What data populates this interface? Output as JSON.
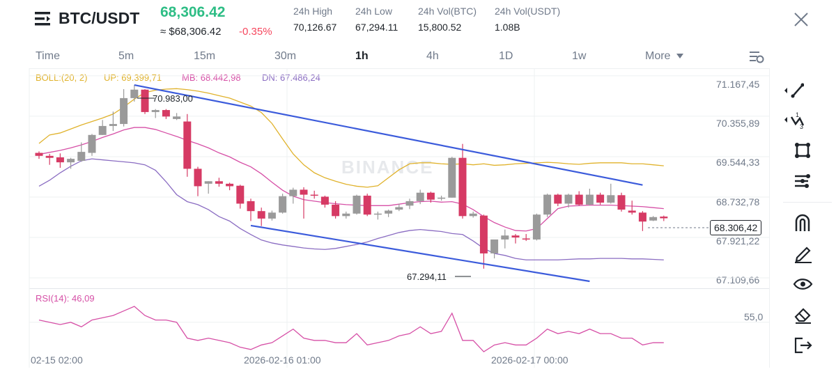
{
  "header": {
    "pair": "BTC/USDT",
    "last_price": "68,306.42",
    "fiat_price": "≈ $68,306.42",
    "change": "-0.35%",
    "stats": [
      {
        "label": "24h High",
        "value": "70,126.67"
      },
      {
        "label": "24h Low",
        "value": "67,294.11"
      },
      {
        "label": "24h Vol(BTC)",
        "value": "15,800.52"
      },
      {
        "label": "24h Vol(USDT)",
        "value": "1.08B"
      }
    ]
  },
  "tabs": [
    {
      "label": "Time",
      "active": false
    },
    {
      "label": "5m",
      "active": false
    },
    {
      "label": "15m",
      "active": false
    },
    {
      "label": "30m",
      "active": false
    },
    {
      "label": "1h",
      "active": true
    },
    {
      "label": "4h",
      "active": false
    },
    {
      "label": "1D",
      "active": false
    },
    {
      "label": "1w",
      "active": false
    },
    {
      "label": "More",
      "active": false
    }
  ],
  "indicators": {
    "boll_label": "BOLL:(20, 2)",
    "up_label": "UP: 69.399,71",
    "mb_label": "MB: 68.442,98",
    "dn_label": "DN: 67.486,24",
    "rsi_label": "RSI(14): 46,09"
  },
  "price_axis": [
    "71.167,45",
    "70.355,89",
    "69.544,33",
    "68.732,78",
    "67.921,22",
    "67.109,66"
  ],
  "rsi_axis": "55,0",
  "time_axis": [
    "02-15 02:00",
    "2026-02-16 01:00",
    "2026-02-17 00:00"
  ],
  "current_price_tag": "68.306,42",
  "annotations": {
    "high": "70.983,00",
    "low": "67.294,11"
  },
  "watermark": "BINANCE",
  "colors": {
    "up": "#2ebd85",
    "down": "#f6465d",
    "bull_candle": "#9a9a9a",
    "bear_candle": "#d63a64",
    "upper_band": "#e0b22b",
    "middle_band": "#d64fa6",
    "lower_band": "#8a6cc2",
    "channel": "#3b5bdb",
    "rsi": "#d64fa6"
  },
  "toolbar_icons": [
    "trend-line-icon",
    "fib-icon",
    "shape-icon",
    "indicator-settings-icon",
    "magnet-icon",
    "pencil-icon",
    "eye-icon",
    "eraser-icon",
    "exit-icon"
  ],
  "chart_data": {
    "type": "candlestick",
    "candles": [
      {
        "o": 69620,
        "h": 69650,
        "l": 69500,
        "c": 69560
      },
      {
        "o": 69560,
        "h": 69600,
        "l": 69380,
        "c": 69520
      },
      {
        "o": 69530,
        "h": 69610,
        "l": 69320,
        "c": 69430
      },
      {
        "o": 69430,
        "h": 69520,
        "l": 69300,
        "c": 69500
      },
      {
        "o": 69460,
        "h": 69830,
        "l": 69440,
        "c": 69640
      },
      {
        "o": 69620,
        "h": 70000,
        "l": 69560,
        "c": 69980
      },
      {
        "o": 69980,
        "h": 70280,
        "l": 69980,
        "c": 70160
      },
      {
        "o": 70160,
        "h": 70450,
        "l": 70060,
        "c": 70200
      },
      {
        "o": 70200,
        "h": 70900,
        "l": 70150,
        "c": 70720
      },
      {
        "o": 70720,
        "h": 70983,
        "l": 70650,
        "c": 70890
      },
      {
        "o": 70890,
        "h": 70900,
        "l": 70400,
        "c": 70440
      },
      {
        "o": 70440,
        "h": 70500,
        "l": 70320,
        "c": 70480
      },
      {
        "o": 70480,
        "h": 70500,
        "l": 70300,
        "c": 70350
      },
      {
        "o": 70300,
        "h": 70420,
        "l": 70280,
        "c": 70350
      },
      {
        "o": 70250,
        "h": 70400,
        "l": 69140,
        "c": 69300
      },
      {
        "o": 69300,
        "h": 69340,
        "l": 68750,
        "c": 68950
      },
      {
        "o": 69000,
        "h": 69050,
        "l": 68800,
        "c": 69050
      },
      {
        "o": 69050,
        "h": 69120,
        "l": 68940,
        "c": 69000
      },
      {
        "o": 69000,
        "h": 69020,
        "l": 68870,
        "c": 68950
      },
      {
        "o": 68960,
        "h": 68980,
        "l": 68500,
        "c": 68600
      },
      {
        "o": 68650,
        "h": 68700,
        "l": 68250,
        "c": 68450
      },
      {
        "o": 68450,
        "h": 68520,
        "l": 68150,
        "c": 68300
      },
      {
        "o": 68300,
        "h": 68460,
        "l": 68260,
        "c": 68420
      },
      {
        "o": 68420,
        "h": 68800,
        "l": 68400,
        "c": 68750
      },
      {
        "o": 68750,
        "h": 68920,
        "l": 68600,
        "c": 68880
      },
      {
        "o": 68880,
        "h": 68930,
        "l": 68300,
        "c": 68780
      },
      {
        "o": 68780,
        "h": 68860,
        "l": 68700,
        "c": 68760
      },
      {
        "o": 68740,
        "h": 68760,
        "l": 68520,
        "c": 68580
      },
      {
        "o": 68580,
        "h": 68650,
        "l": 68300,
        "c": 68350
      },
      {
        "o": 68350,
        "h": 68440,
        "l": 68300,
        "c": 68400
      },
      {
        "o": 68400,
        "h": 68780,
        "l": 68380,
        "c": 68760
      },
      {
        "o": 68760,
        "h": 68800,
        "l": 68350,
        "c": 68380
      },
      {
        "o": 68380,
        "h": 68440,
        "l": 68280,
        "c": 68400
      },
      {
        "o": 68400,
        "h": 68480,
        "l": 68330,
        "c": 68460
      },
      {
        "o": 68480,
        "h": 68600,
        "l": 68450,
        "c": 68530
      },
      {
        "o": 68560,
        "h": 68700,
        "l": 68490,
        "c": 68650
      },
      {
        "o": 68650,
        "h": 68880,
        "l": 68590,
        "c": 68820
      },
      {
        "o": 68820,
        "h": 68840,
        "l": 68620,
        "c": 68680
      },
      {
        "o": 68710,
        "h": 68760,
        "l": 68660,
        "c": 68720
      },
      {
        "o": 68720,
        "h": 69540,
        "l": 68720,
        "c": 69520
      },
      {
        "o": 69520,
        "h": 69800,
        "l": 68300,
        "c": 68350
      },
      {
        "o": 68350,
        "h": 68440,
        "l": 68320,
        "c": 68400
      },
      {
        "o": 68360,
        "h": 68380,
        "l": 67294,
        "c": 67600
      },
      {
        "o": 67600,
        "h": 67860,
        "l": 67500,
        "c": 67880
      },
      {
        "o": 67880,
        "h": 68080,
        "l": 67700,
        "c": 67960
      },
      {
        "o": 67960,
        "h": 67990,
        "l": 67800,
        "c": 67920
      },
      {
        "o": 67900,
        "h": 67990,
        "l": 67850,
        "c": 67880
      },
      {
        "o": 67880,
        "h": 68400,
        "l": 67860,
        "c": 68380
      },
      {
        "o": 68380,
        "h": 68800,
        "l": 68330,
        "c": 68780
      },
      {
        "o": 68780,
        "h": 68800,
        "l": 68550,
        "c": 68600
      },
      {
        "o": 68600,
        "h": 68800,
        "l": 68520,
        "c": 68780
      },
      {
        "o": 68780,
        "h": 68850,
        "l": 68560,
        "c": 68580
      },
      {
        "o": 68580,
        "h": 68900,
        "l": 68560,
        "c": 68780
      },
      {
        "o": 68780,
        "h": 68820,
        "l": 68580,
        "c": 68620
      },
      {
        "o": 68620,
        "h": 69000,
        "l": 68600,
        "c": 68770
      },
      {
        "o": 68770,
        "h": 68820,
        "l": 68440,
        "c": 68480
      },
      {
        "o": 68460,
        "h": 68660,
        "l": 68380,
        "c": 68420
      },
      {
        "o": 68420,
        "h": 68450,
        "l": 68050,
        "c": 68240
      },
      {
        "o": 68260,
        "h": 68350,
        "l": 68250,
        "c": 68330
      },
      {
        "o": 68340,
        "h": 68360,
        "l": 68250,
        "c": 68306
      }
    ],
    "upper_band": [
      69810,
      69980,
      70020,
      70100,
      70180,
      70250,
      70320,
      70400,
      70540,
      70700,
      70830,
      70880,
      70900,
      70910,
      70890,
      70860,
      70820,
      70770,
      70720,
      70640,
      70560,
      70430,
      70210,
      69900,
      69600,
      69380,
      69220,
      69120,
      69050,
      68990,
      68950,
      68930,
      68960,
      69120,
      69280,
      69400,
      69420,
      69420,
      69400,
      69390,
      69400,
      69380,
      69400,
      69370,
      69380,
      69400,
      69410,
      69420,
      69430,
      69420,
      69400,
      69390,
      69410,
      69420,
      69420,
      69420,
      69400,
      69400,
      69380,
      69360
    ],
    "middle_band": [
      69590,
      69630,
      69670,
      69720,
      69780,
      69850,
      69930,
      70000,
      70080,
      70130,
      70130,
      70090,
      70020,
      69950,
      69870,
      69800,
      69720,
      69620,
      69540,
      69430,
      69340,
      69200,
      69030,
      68870,
      68750,
      68680,
      68650,
      68620,
      68600,
      68580,
      68570,
      68560,
      68560,
      68560,
      68590,
      68620,
      68640,
      68650,
      68630,
      68640,
      68590,
      68480,
      68340,
      68220,
      68130,
      68060,
      68050,
      68100,
      68300,
      68500,
      68550,
      68560,
      68570,
      68570,
      68570,
      68560,
      68550,
      68540,
      68520,
      68500
    ],
    "lower_band": [
      68950,
      69070,
      69220,
      69350,
      69460,
      69500,
      69480,
      69460,
      69440,
      69420,
      69380,
      69270,
      69040,
      68780,
      68640,
      68580,
      68480,
      68340,
      68250,
      68100,
      67980,
      67870,
      67810,
      67770,
      67740,
      67710,
      67690,
      67680,
      67700,
      67740,
      67780,
      67830,
      67900,
      67960,
      68020,
      68060,
      68080,
      68060,
      68040,
      68000,
      67980,
      67850,
      67700,
      67600,
      67560,
      67500,
      67470,
      67470,
      67470,
      67470,
      67480,
      67490,
      67490,
      67500,
      67500,
      67500,
      67490,
      67490,
      67480,
      67470
    ],
    "rsi": [
      56,
      55,
      54,
      55,
      53,
      56,
      57,
      58,
      60,
      62,
      58,
      56,
      56,
      55,
      48,
      47,
      48,
      47,
      46,
      44,
      43,
      45,
      46,
      49,
      52,
      48,
      47,
      47,
      46,
      46,
      50,
      45,
      46,
      47,
      49,
      50,
      53,
      50,
      51,
      59,
      47,
      47,
      42,
      45,
      46,
      45,
      45,
      48,
      52,
      50,
      51,
      50,
      52,
      50,
      50,
      48,
      48,
      45,
      46,
      46
    ],
    "channel": {
      "upper": [
        {
          "i": 9,
          "p": 70983
        },
        {
          "i": 57,
          "p": 68975
        }
      ],
      "lower": [
        {
          "i": 20,
          "p": 68160
        },
        {
          "i": 52,
          "p": 67040
        }
      ]
    },
    "y_range": [
      66900,
      71320
    ],
    "price_ticks": [
      71167.45,
      70355.89,
      69544.33,
      68732.78,
      67921.22,
      67109.66
    ],
    "rsi_range": [
      35,
      70
    ],
    "rsi_ticks": [
      55
    ],
    "last": 68306.42
  }
}
